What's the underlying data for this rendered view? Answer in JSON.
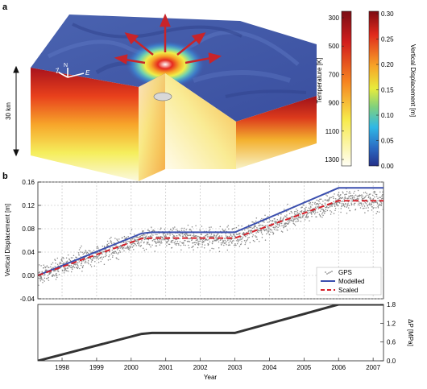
{
  "panel_a": {
    "label": "a",
    "depth_label": "30 km",
    "axis_z": "Z",
    "axis_n": "N",
    "axis_e": "E",
    "temperature_colorbar": {
      "label": "Temperature [K]",
      "ticks": [
        "300",
        "500",
        "700",
        "900",
        "1100",
        "1300"
      ]
    },
    "displacement_colorbar": {
      "label": "Vertical Displacement [m]",
      "ticks": [
        "0.30",
        "0.25",
        "0.20",
        "0.15",
        "0.10",
        "0.05",
        "0.00"
      ]
    },
    "colors": {
      "deep_red": "#b0141e",
      "orange": "#f2781e",
      "yellow": "#f5ee58",
      "cream": "#fbf7d8",
      "surface_blue": "#3f56a6"
    }
  },
  "panel_b": {
    "label": "b",
    "xlabel": "Year",
    "ylabel_top": "Vertical Displacement [m]",
    "ylabel_bottom": "ΔP [MPa]",
    "x_ticks": [
      "1998",
      "1999",
      "2000",
      "2001",
      "2002",
      "2003",
      "2004",
      "2005",
      "2006",
      "2007"
    ],
    "y_ticks_top": [
      "-0.04",
      "0.00",
      "0.04",
      "0.08",
      "0.12",
      "0.16"
    ],
    "y_ticks_bottom": [
      "0.0",
      "0.6",
      "1.2",
      "1.8"
    ],
    "legend": {
      "gps": "GPS",
      "modelled": "Modelled",
      "scaled": "Scaled"
    }
  },
  "chart_data": [
    {
      "type": "line",
      "title": "",
      "xlabel": "",
      "ylabel": "Vertical Displacement [m]",
      "xlim": [
        1997.3,
        2007.3
      ],
      "ylim": [
        -0.04,
        0.16
      ],
      "grid": true,
      "legend_position": "bottom-right",
      "series": [
        {
          "name": "Modelled",
          "color": "#3b4fae",
          "style": "solid",
          "x": [
            1997.3,
            2000.3,
            2000.6,
            2003.0,
            2006.0,
            2007.3
          ],
          "y": [
            0.0,
            0.072,
            0.074,
            0.074,
            0.15,
            0.15
          ]
        },
        {
          "name": "Scaled",
          "color": "#d6202a",
          "style": "dashed",
          "x": [
            1997.3,
            2000.3,
            2000.6,
            2003.0,
            2006.0,
            2007.3
          ],
          "y": [
            0.0,
            0.063,
            0.064,
            0.064,
            0.128,
            0.128
          ]
        },
        {
          "name": "GPS",
          "color": "#8a8a8a",
          "style": "points",
          "x": [
            1997.3,
            1998.0,
            1999.0,
            2000.0,
            2000.3,
            2001.0,
            2002.0,
            2003.0,
            2004.0,
            2005.0,
            2006.0,
            2007.3
          ],
          "y": [
            0.0,
            0.015,
            0.036,
            0.057,
            0.062,
            0.064,
            0.064,
            0.064,
            0.085,
            0.107,
            0.128,
            0.128
          ]
        }
      ]
    },
    {
      "type": "line",
      "title": "",
      "xlabel": "Year",
      "ylabel": "ΔP [MPa]",
      "xlim": [
        1997.3,
        2007.3
      ],
      "ylim": [
        0.0,
        1.8
      ],
      "grid": false,
      "series": [
        {
          "name": "",
          "color": "#333333",
          "style": "solid",
          "x": [
            1997.3,
            2000.3,
            2000.6,
            2003.0,
            2006.0,
            2007.3
          ],
          "y": [
            0.0,
            0.86,
            0.89,
            0.89,
            1.8,
            1.8
          ]
        }
      ]
    }
  ]
}
